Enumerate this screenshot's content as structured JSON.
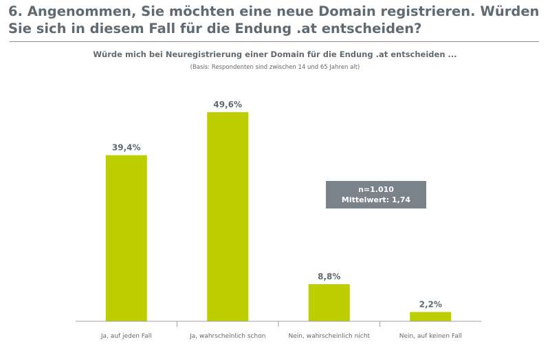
{
  "heading": "6. Angenommen, Sie möchten eine neue Domain registrieren. Würden Sie sich in diesem Fall für die Endung .at entscheiden?",
  "infobox": {
    "n": "n=1.010",
    "mean": "Mittelwert: 1,74"
  },
  "colors": {
    "bar": "#bccd00",
    "text": "#5f6a72",
    "box": "#7b838a"
  },
  "chart_data": {
    "type": "bar",
    "title": "Würde mich bei Neuregistrierung einer Domain für die Endung .at entscheiden ...",
    "subtitle": "(Basis: Respondenten sind zwischen 14 und 65 Jahren alt)",
    "categories": [
      "Ja, auf jeden Fall",
      "Ja, wahrscheinlich schon",
      "Nein, wahrscheinlich nicht",
      "Nein, auf keinen Fall"
    ],
    "values": [
      39.4,
      49.6,
      8.8,
      2.2
    ],
    "value_labels": [
      "39,4%",
      "49,6%",
      "8,8%",
      "2,2%"
    ],
    "ylim": [
      0,
      55
    ],
    "grid": false,
    "legend": "none"
  }
}
